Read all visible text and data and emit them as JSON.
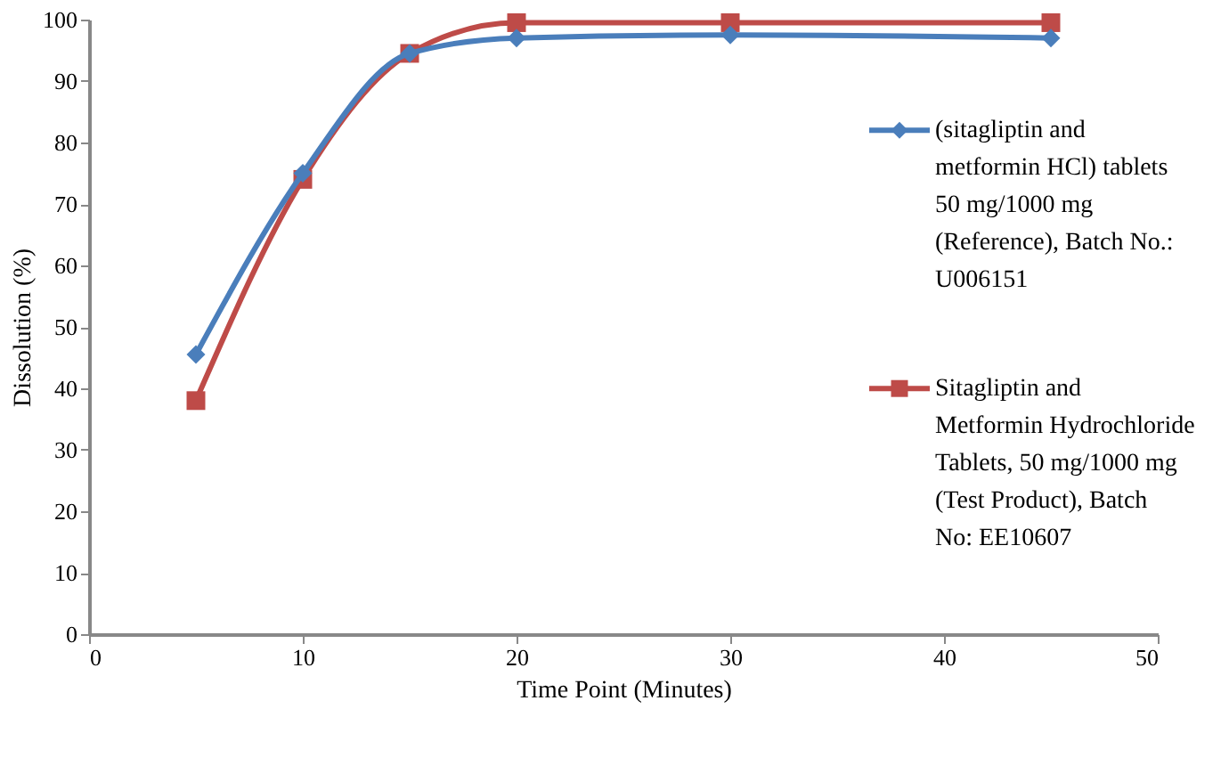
{
  "chart_data": {
    "type": "line",
    "xlabel": "Time Point (Minutes)",
    "ylabel": "Dissolution (%)",
    "x": [
      5,
      10,
      15,
      20,
      30,
      45
    ],
    "series": [
      {
        "name": "(sitagliptin and metformin HCl) tablets 50 mg/1000 mg (Reference), Batch No.: U006151",
        "color": "#4a7ebb",
        "marker": "diamond",
        "values": [
          45.5,
          75,
          94.5,
          97,
          97.5,
          97
        ]
      },
      {
        "name": "Sitagliptin and Metformin Hydrochloride Tablets, 50 mg/1000 mg (Test Product), Batch No: EE10607",
        "color": "#be4b48",
        "marker": "square",
        "values": [
          38,
          74,
          94.5,
          99.5,
          99.5,
          99.5
        ]
      }
    ],
    "xlim": [
      0,
      50
    ],
    "xticks": [
      0,
      10,
      20,
      30,
      40,
      50
    ],
    "ylim": [
      0,
      100
    ],
    "yticks": [
      0,
      10,
      20,
      30,
      40,
      50,
      60,
      70,
      80,
      90,
      100
    ],
    "grid": false,
    "legend": "right",
    "line_style": "solid"
  }
}
